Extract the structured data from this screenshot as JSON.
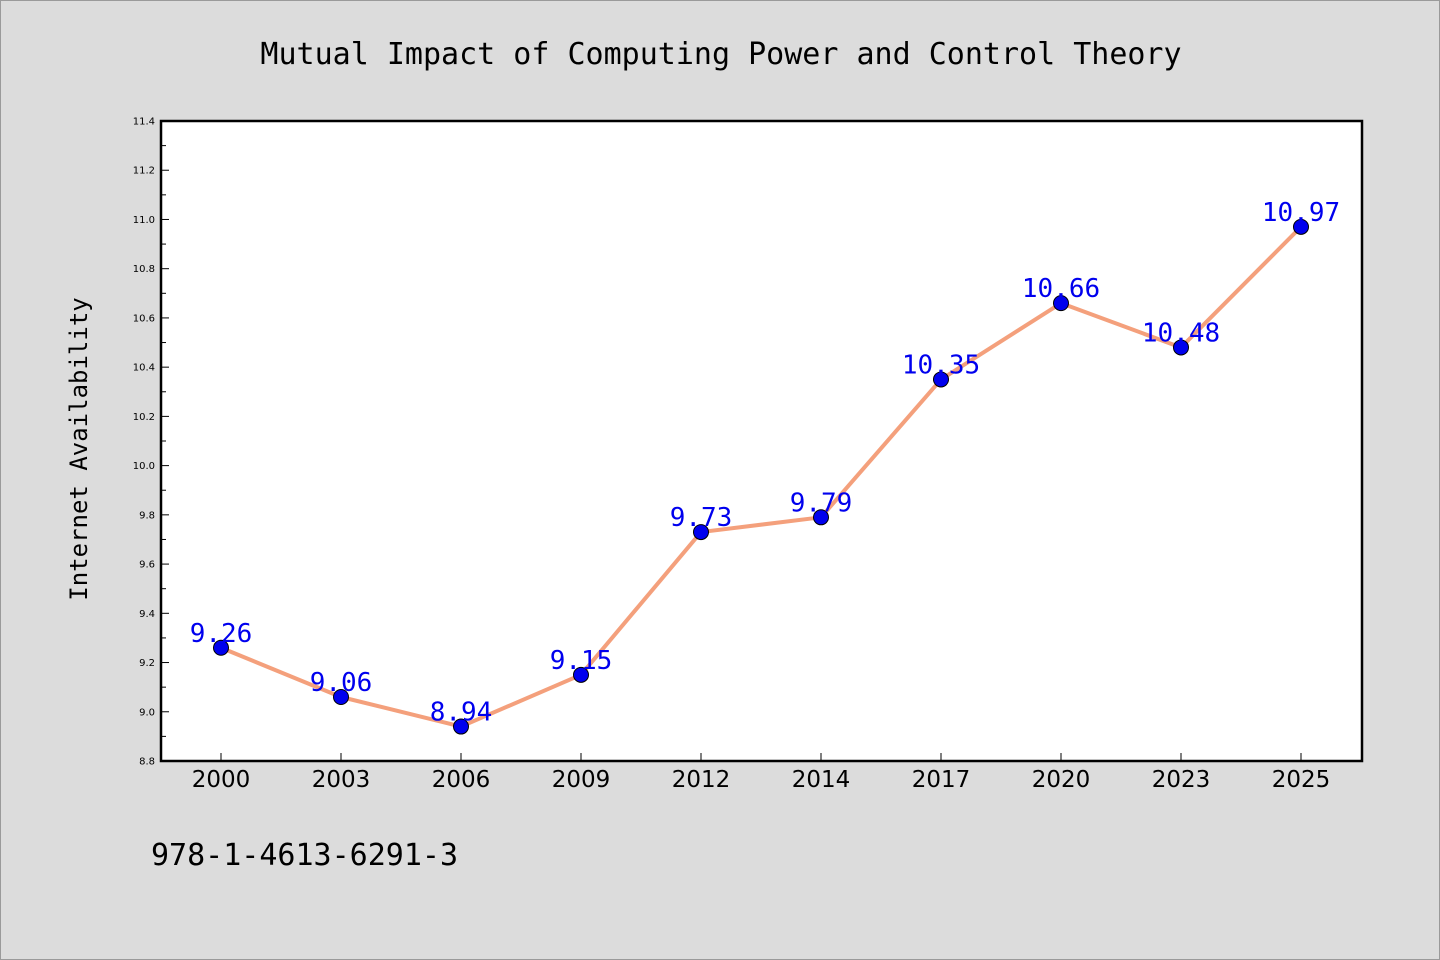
{
  "chart_data": {
    "type": "line",
    "title": "Mutual Impact of Computing Power and Control Theory",
    "xlabel": "",
    "ylabel": "Internet Availability",
    "categories": [
      "2000",
      "2003",
      "2006",
      "2009",
      "2012",
      "2014",
      "2017",
      "2020",
      "2023",
      "2025"
    ],
    "series": [
      {
        "values": [
          9.26,
          9.06,
          8.94,
          9.15,
          9.73,
          9.79,
          10.35,
          10.66,
          10.48,
          10.97
        ],
        "line_color": "#f4a07c",
        "marker_color": "#0000ee",
        "label_color": "#0000ee"
      }
    ],
    "ylim": [
      8.8,
      11.4
    ],
    "y_ticks": [
      "8.8",
      "9.0",
      "9.2",
      "9.4",
      "9.6",
      "9.8",
      "10.0",
      "10.2",
      "10.4",
      "10.6",
      "10.8",
      "11.0",
      "11.2",
      "11.4"
    ],
    "data_labels": [
      "9.26",
      "9.06",
      "8.94",
      "9.15",
      "9.73",
      "9.79",
      "10.35",
      "10.66",
      "10.48",
      "10.97"
    ],
    "grid": false,
    "legend": "none",
    "annotation": "978-1-4613-6291-3",
    "colors": {
      "background": "#dcdcdc",
      "plot_background": "#ffffff",
      "axis": "#000000"
    }
  }
}
